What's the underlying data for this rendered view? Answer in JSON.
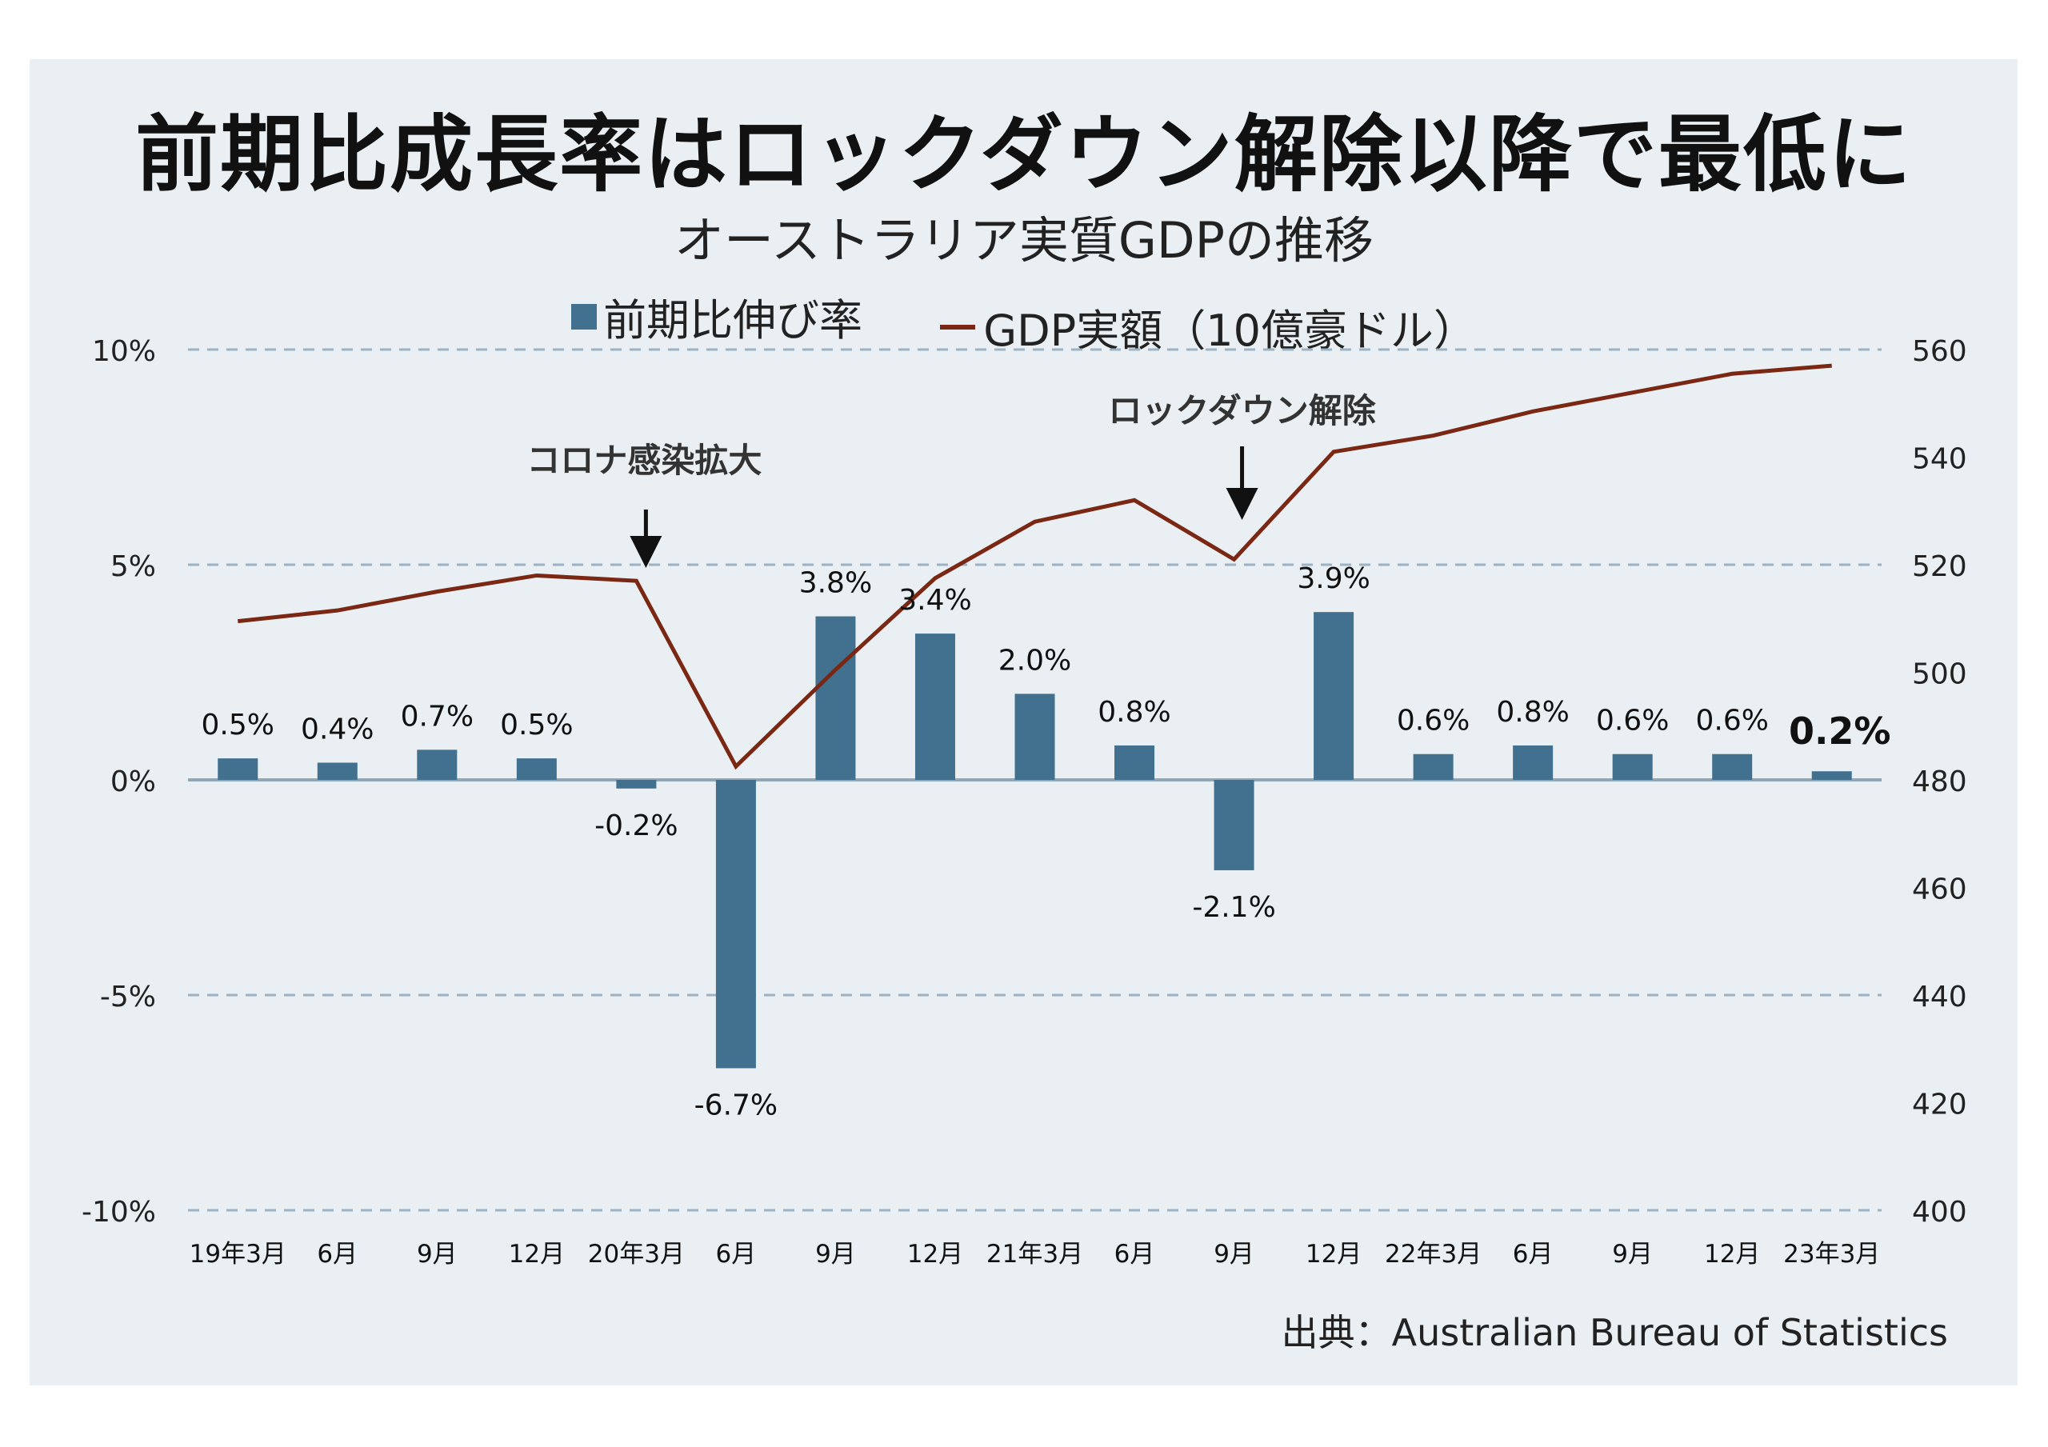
{
  "title": "前期比成長率はロックダウン解除以降で最低に",
  "subtitle": "オーストラリア実質GDPの推移",
  "legend": {
    "bar": "前期比伸び率",
    "line": "GDP実額（10億豪ドル）"
  },
  "source": "出典：Australian Bureau of Statistics",
  "colors": {
    "bar": "#42708f",
    "line": "#7a2714",
    "grid": "#9bb3c4",
    "background": "#e9eff2"
  },
  "chart_data": {
    "type": "bar",
    "categories": [
      "19年3月",
      "6月",
      "9月",
      "12月",
      "20年3月",
      "6月",
      "9月",
      "12月",
      "21年3月",
      "6月",
      "9月",
      "12月",
      "22年3月",
      "6月",
      "9月",
      "12月",
      "23年3月"
    ],
    "series": [
      {
        "name": "前期比伸び率",
        "type": "bar",
        "axis": "left",
        "values": [
          0.5,
          0.4,
          0.7,
          0.5,
          -0.2,
          -6.7,
          3.8,
          3.4,
          2.0,
          0.8,
          -2.1,
          3.9,
          0.6,
          0.8,
          0.6,
          0.6,
          0.2
        ],
        "labels": [
          "0.5%",
          "0.4%",
          "0.7%",
          "0.5%",
          "-0.2%",
          "-6.7%",
          "3.8%",
          "3.4%",
          "2.0%",
          "0.8%",
          "-2.1%",
          "3.9%",
          "0.6%",
          "0.8%",
          "0.6%",
          "0.6%",
          "0.2%"
        ]
      },
      {
        "name": "GDP実額（10億豪ドル）",
        "type": "line",
        "axis": "right",
        "values": [
          509.5,
          511.5,
          515,
          518,
          517,
          482.5,
          500.5,
          517.5,
          528,
          532,
          521,
          541,
          544,
          548.5,
          552,
          555.5,
          557
        ]
      }
    ],
    "left_axis": {
      "ticks": [
        "10%",
        "5%",
        "0%",
        "-5%",
        "-10%"
      ],
      "range": [
        -10,
        10
      ]
    },
    "right_axis": {
      "ticks": [
        "560",
        "540",
        "520",
        "500",
        "480",
        "460",
        "440",
        "420",
        "400"
      ],
      "range": [
        400,
        560
      ]
    },
    "annotations": [
      {
        "text": "コロナ感染拡大",
        "at_index": 4
      },
      {
        "text": "ロックダウン解除",
        "at_index": 10
      }
    ],
    "grid": "dashed horizontal at left-axis ticks",
    "highlight_last_label": true
  }
}
